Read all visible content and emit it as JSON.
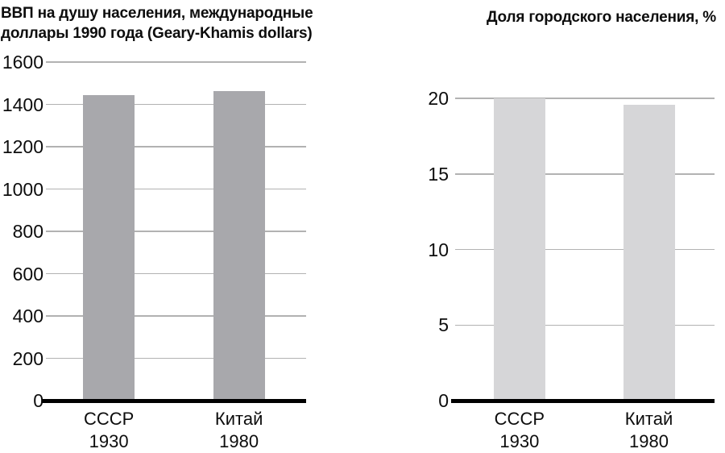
{
  "figure": {
    "background": "#ffffff",
    "text_color": "#0d0d0d"
  },
  "chart_data": [
    {
      "type": "bar",
      "title": "ВВП на душу населения, международные доллары 1990 года (Geary-Khamis dollars)",
      "title_lines": [
        "ВВП на душу населения, международные",
        "доллары 1990 года (Geary-Khamis dollars)"
      ],
      "categories": [
        "СССР 1930",
        "Китай 1980"
      ],
      "category_lines": [
        [
          "СССР",
          "1930"
        ],
        [
          "Китай",
          "1980"
        ]
      ],
      "values": [
        1445,
        1462
      ],
      "ylim": [
        0,
        1600
      ],
      "yticks": [
        0,
        200,
        400,
        600,
        800,
        1000,
        1200,
        1400,
        1600
      ],
      "grid": true,
      "legend": false,
      "bar_color": "#a8a8ac",
      "gridline_color": "#b2b2b2",
      "axis_color": "#000000"
    },
    {
      "type": "bar",
      "title": "Доля городского населения, %",
      "title_lines": [
        "Доля городского населения, %"
      ],
      "categories": [
        "СССР 1930",
        "Китай 1980"
      ],
      "category_lines": [
        [
          "СССР",
          "1930"
        ],
        [
          "Китай",
          "1980"
        ]
      ],
      "values": [
        20,
        19.6
      ],
      "ylim": [
        0,
        20
      ],
      "yticks": [
        0,
        5,
        10,
        15,
        20
      ],
      "grid": true,
      "legend": false,
      "bar_color": "#d6d6d8",
      "gridline_color": "#b2b2b2",
      "axis_color": "#000000"
    }
  ]
}
